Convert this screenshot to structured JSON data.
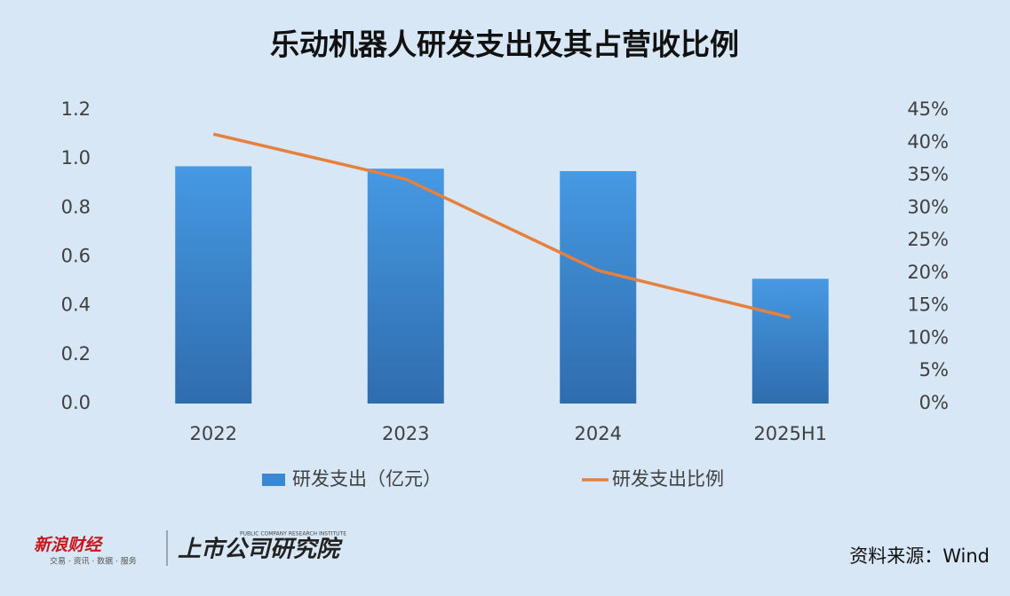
{
  "chart_data": {
    "type": "combo",
    "title": "乐动机器人研发支出及其占营收比例",
    "categories": [
      "2022",
      "2023",
      "2024",
      "2025H1"
    ],
    "series": [
      {
        "name": "研发支出（亿元）",
        "type": "bar",
        "color": "#3a87d4",
        "axis": "y",
        "values": [
          0.97,
          0.96,
          0.95,
          0.51
        ]
      },
      {
        "name": "研发支出比例",
        "type": "line",
        "color": "#e6803e",
        "axis": "y2",
        "values": [
          41.3,
          34.4,
          20.4,
          13.2
        ]
      }
    ],
    "ylim": [
      0,
      1.2
    ],
    "yticks": [
      {
        "value": 0,
        "label": "0.0"
      },
      0.2,
      0.4,
      0.6,
      0.8,
      {
        "value": 1,
        "label": "1.0"
      },
      1.2
    ],
    "y2lim": [
      0,
      45
    ],
    "y2ticks": [
      {
        "value": 0,
        "label": "0%"
      },
      {
        "value": 5,
        "label": "5%"
      },
      {
        "value": 10,
        "label": "10%"
      },
      {
        "value": 15,
        "label": "15%"
      },
      {
        "value": 20,
        "label": "20%"
      },
      {
        "value": 25,
        "label": "25%"
      },
      {
        "value": 30,
        "label": "30%"
      },
      {
        "value": 35,
        "label": "35%"
      },
      {
        "value": 40,
        "label": "40%"
      },
      {
        "value": 45,
        "label": "45%"
      }
    ],
    "grid": false,
    "legend": "bottom",
    "source": "资料来源：Wind"
  },
  "branding": {
    "sina": "新浪财经",
    "sina_sub": "交易 · 资讯 · 数据 · 服务",
    "institute": "上市公司研究院",
    "institute_sub": "PUBLIC COMPANY RESEARCH INSTITUTE"
  }
}
